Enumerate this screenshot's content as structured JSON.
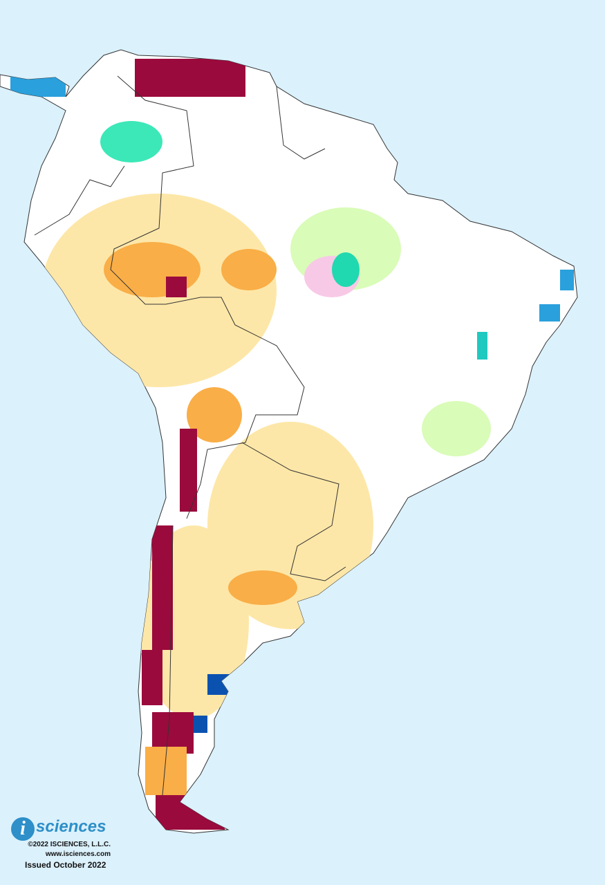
{
  "logo": {
    "icon": "i",
    "name": "sciences"
  },
  "copyright": "©2022 ISCIENCES, L.L.C.",
  "website": "www.isciences.com",
  "issued": "Issued October 2022"
}
